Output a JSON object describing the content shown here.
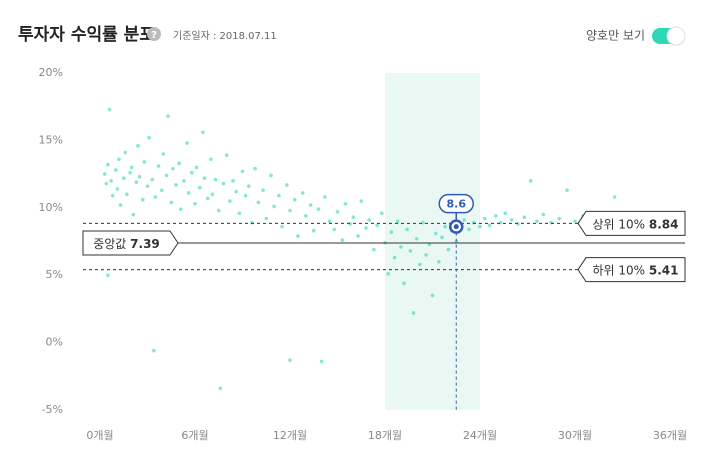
{
  "header": {
    "title": "투자자 수익률 분포",
    "help_icon": "?",
    "date_label": "기준일자 : 2018.07.11",
    "toggle_label": "양호만 보기",
    "toggle_on": true
  },
  "chart_data": {
    "type": "scatter",
    "xlim": [
      0,
      36
    ],
    "ylim": [
      -5,
      20
    ],
    "xticks": [
      {
        "value": 0,
        "label": "0개월"
      },
      {
        "value": 6,
        "label": "6개월"
      },
      {
        "value": 12,
        "label": "12개월"
      },
      {
        "value": 18,
        "label": "18개월"
      },
      {
        "value": 24,
        "label": "24개월"
      },
      {
        "value": 30,
        "label": "30개월"
      },
      {
        "value": 36,
        "label": "36개월"
      }
    ],
    "yticks": [
      {
        "value": 20,
        "label": "20%"
      },
      {
        "value": 15,
        "label": "15%"
      },
      {
        "value": 10,
        "label": "10%"
      },
      {
        "value": 5,
        "label": "5%"
      },
      {
        "value": 0,
        "label": "0%"
      },
      {
        "value": -5,
        "label": "-5%"
      }
    ],
    "grid": false,
    "highlight_x": [
      18,
      24
    ],
    "series": [
      {
        "color": "#2ed8b6",
        "x": [
          0.3,
          0.4,
          0.5,
          0.6,
          0.7,
          0.8,
          1.0,
          1.1,
          1.2,
          1.3,
          1.5,
          1.6,
          1.7,
          1.9,
          2.0,
          2.1,
          2.3,
          2.4,
          2.5,
          2.7,
          2.8,
          3.0,
          3.1,
          3.3,
          3.4,
          3.5,
          3.7,
          3.9,
          4.0,
          4.2,
          4.3,
          4.5,
          4.6,
          4.8,
          5.0,
          5.1,
          5.3,
          5.5,
          5.6,
          5.8,
          6.0,
          6.1,
          6.3,
          6.5,
          6.6,
          6.8,
          7.0,
          7.1,
          7.3,
          7.5,
          7.6,
          7.8,
          8.0,
          8.2,
          8.4,
          8.6,
          8.8,
          9.0,
          9.2,
          9.4,
          9.6,
          9.8,
          10.0,
          10.3,
          10.5,
          10.8,
          11.0,
          11.3,
          11.5,
          11.8,
          12.0,
          12.3,
          12.5,
          12.8,
          13.0,
          13.3,
          13.5,
          13.8,
          14.0,
          14.2,
          14.5,
          14.8,
          15.0,
          15.3,
          15.5,
          15.8,
          16.0,
          16.3,
          16.5,
          16.8,
          17.0,
          17.3,
          17.5,
          17.8,
          18.0,
          18.2,
          18.4,
          18.6,
          18.8,
          19.0,
          19.2,
          19.4,
          19.6,
          19.8,
          20.0,
          20.2,
          20.4,
          20.6,
          20.8,
          21.0,
          21.2,
          21.4,
          21.6,
          21.8,
          22.0,
          22.2,
          22.5,
          22.8,
          23.0,
          23.3,
          23.6,
          24.0,
          24.3,
          24.6,
          25.0,
          25.3,
          25.6,
          26.0,
          26.4,
          26.8,
          27.2,
          27.6,
          28.0,
          28.5,
          29.0,
          29.5,
          30.0,
          30.5,
          31.0,
          31.5,
          32.0,
          32.5,
          33.0,
          12.0,
          0.5
        ],
        "values": [
          12.5,
          11.8,
          13.2,
          17.3,
          12.0,
          10.9,
          12.8,
          11.4,
          13.6,
          10.2,
          12.2,
          14.1,
          11.0,
          12.6,
          13.0,
          9.5,
          11.9,
          14.6,
          12.3,
          10.6,
          13.4,
          11.6,
          15.2,
          12.1,
          -0.6,
          10.8,
          13.1,
          11.3,
          14.0,
          12.4,
          16.8,
          10.4,
          12.9,
          11.7,
          13.3,
          9.9,
          12.0,
          14.8,
          11.1,
          12.6,
          10.3,
          13.0,
          11.5,
          15.6,
          12.2,
          10.7,
          13.6,
          11.0,
          12.1,
          9.8,
          -3.4,
          11.8,
          13.9,
          10.5,
          12.0,
          11.2,
          9.6,
          12.7,
          10.9,
          11.6,
          8.9,
          12.9,
          10.4,
          11.3,
          9.2,
          12.4,
          10.1,
          10.9,
          8.6,
          11.7,
          9.8,
          10.6,
          7.9,
          11.1,
          9.4,
          10.2,
          8.3,
          9.9,
          -1.4,
          10.8,
          9.0,
          8.4,
          9.7,
          7.6,
          10.3,
          8.8,
          9.3,
          7.9,
          10.5,
          8.5,
          9.1,
          6.9,
          8.7,
          9.6,
          7.4,
          5.1,
          8.2,
          6.3,
          9.0,
          7.1,
          4.4,
          8.4,
          6.8,
          2.2,
          7.7,
          5.8,
          8.9,
          6.5,
          7.3,
          3.5,
          8.1,
          6.0,
          7.8,
          8.6,
          6.9,
          8.3,
          7.5,
          8.8,
          9.1,
          8.4,
          8.9,
          8.6,
          9.2,
          8.7,
          9.4,
          8.9,
          9.6,
          9.1,
          8.8,
          9.3,
          12.0,
          9.0,
          9.5,
          8.9,
          9.2,
          11.3,
          9.0,
          9.4,
          8.7,
          9.1,
          8.5,
          10.8,
          9.6,
          -1.3,
          5.0
        ]
      }
    ],
    "marker": {
      "x": 22.5,
      "y": 8.6,
      "color": "#2f5cb8"
    },
    "reference_lines": [
      {
        "name": "상위 10%",
        "value": 8.84,
        "style": "dashed",
        "side": "right"
      },
      {
        "name": "중앙값",
        "value": 7.39,
        "style": "solid",
        "side": "left"
      },
      {
        "name": "하위 10%",
        "value": 5.41,
        "style": "dashed",
        "side": "right"
      }
    ]
  }
}
